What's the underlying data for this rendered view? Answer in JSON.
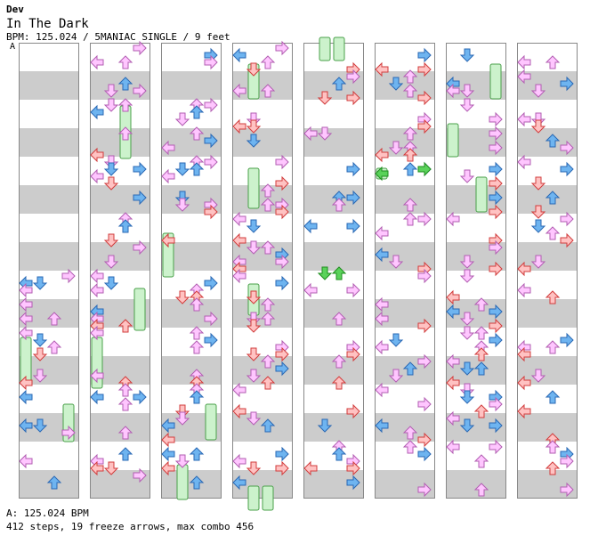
{
  "header": {
    "author": "Dev",
    "title": "In The Dark",
    "info": "BPM: 125.024 / 5MANIAC SINGLE / 9 feet",
    "bpm_marker": "A"
  },
  "footer": {
    "bpm_line": "A: 125.024 BPM",
    "stats_line": "412 steps, 19 freeze arrows, max combo 456"
  },
  "colors": {
    "red_fill": "#ffc2c2",
    "red_stroke": "#d23c3c",
    "blue_fill": "#6eb4f0",
    "blue_stroke": "#2a68b4",
    "pink_fill": "#ffc6ff",
    "pink_stroke": "#b25eb2",
    "green_fill": "#5ad25a",
    "green_stroke": "#1e8c1e",
    "freeze_fill": "#ccf2cc",
    "freeze_stroke": "#4aa04a",
    "stripe": "#cccccc"
  },
  "chart_data": {
    "type": "stepchart",
    "lanes": [
      "left",
      "down",
      "up",
      "right"
    ],
    "columns": 8,
    "measures_per_column": 8,
    "freeze_count": 19
  }
}
